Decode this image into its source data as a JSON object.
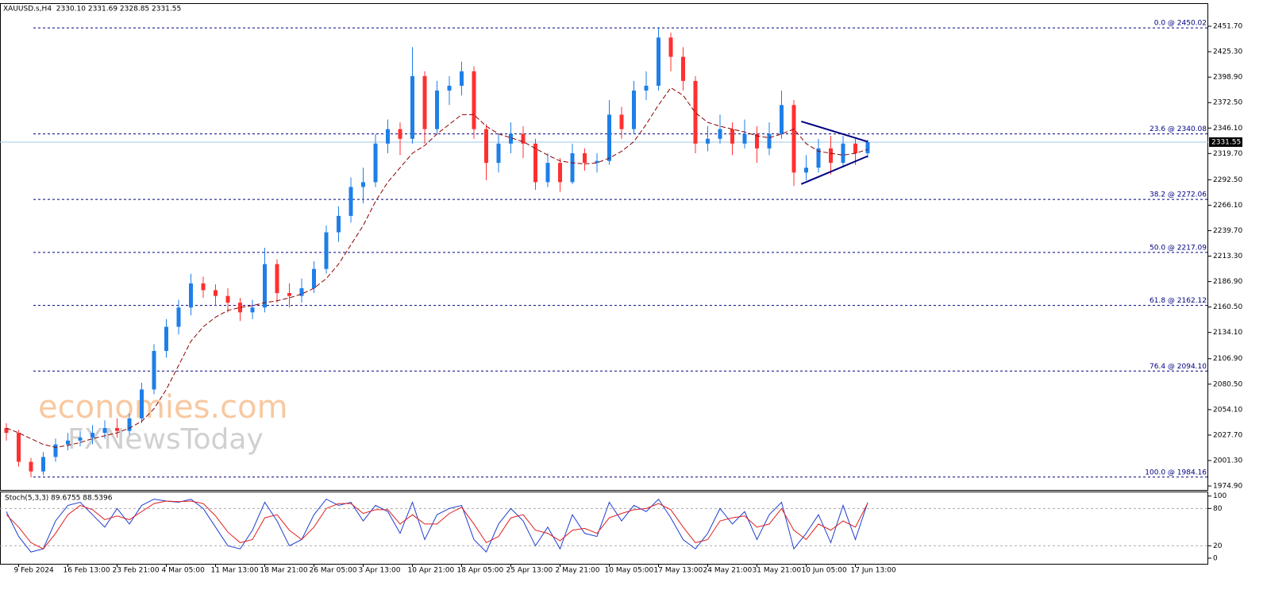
{
  "chart_data": {
    "type": "candlestick",
    "title": "XAUUSD.s,H4  2330.10 2331.69 2328.85 2331.55",
    "categories": [
      null,
      "9 Feb 2024",
      null,
      null,
      null,
      "16 Feb 13:00",
      null,
      null,
      null,
      "23 Feb 21:00",
      null,
      null,
      null,
      "4 Mar 05:00",
      null,
      null,
      null,
      "11 Mar 13:00",
      null,
      null,
      null,
      "18 Mar 21:00",
      null,
      null,
      null,
      "26 Mar 05:00",
      null,
      null,
      null,
      "3 Apr 13:00",
      null,
      null,
      null,
      "10 Apr 21:00",
      null,
      null,
      null,
      "18 Apr 05:00",
      null,
      null,
      null,
      "25 Apr 13:00",
      null,
      null,
      null,
      "2 May 21:00",
      null,
      null,
      null,
      "10 May 05:00",
      null,
      null,
      null,
      "17 May 13:00",
      null,
      null,
      null,
      "24 May 21:00",
      null,
      null,
      null,
      "31 May 21:00",
      null,
      null,
      null,
      "10 Jun 05:00",
      null,
      null,
      null,
      "17 Jun 13:00",
      null
    ],
    "open": [
      2035,
      2030,
      2000,
      1990,
      2005,
      2018,
      2022,
      2025,
      2030,
      2035,
      2032,
      2045,
      2075,
      2115,
      2140,
      2160,
      2185,
      2178,
      2172,
      2165,
      2155,
      2160,
      2205,
      2175,
      2172,
      2180,
      2200,
      2238,
      2255,
      2285,
      2290,
      2330,
      2345,
      2335,
      2400,
      2345,
      2385,
      2390,
      2405,
      2345,
      2310,
      2330,
      2340,
      2330,
      2290,
      2310,
      2290,
      2320,
      2310,
      2312,
      2360,
      2345,
      2385,
      2390,
      2440,
      2420,
      2395,
      2330,
      2335,
      2345,
      2330,
      2340,
      2325,
      2340,
      2370,
      2300,
      2305,
      2325,
      2310,
      2330,
      2320
    ],
    "high": [
      2040,
      2033,
      2004,
      2010,
      2024,
      2030,
      2032,
      2038,
      2043,
      2045,
      2050,
      2082,
      2122,
      2148,
      2168,
      2195,
      2192,
      2184,
      2180,
      2170,
      2168,
      2222,
      2210,
      2185,
      2190,
      2208,
      2245,
      2265,
      2295,
      2305,
      2340,
      2355,
      2352,
      2430,
      2405,
      2395,
      2400,
      2415,
      2410,
      2350,
      2340,
      2352,
      2348,
      2335,
      2320,
      2315,
      2330,
      2325,
      2320,
      2375,
      2368,
      2395,
      2405,
      2450,
      2445,
      2430,
      2400,
      2348,
      2360,
      2352,
      2355,
      2348,
      2352,
      2385,
      2375,
      2318,
      2335,
      2338,
      2338,
      2335,
      2334
    ],
    "low": [
      2022,
      1995,
      1984,
      1986,
      2000,
      2012,
      2016,
      2018,
      2024,
      2025,
      2028,
      2040,
      2070,
      2108,
      2132,
      2152,
      2170,
      2162,
      2155,
      2146,
      2148,
      2155,
      2165,
      2160,
      2165,
      2175,
      2195,
      2228,
      2248,
      2268,
      2285,
      2320,
      2318,
      2330,
      2330,
      2340,
      2370,
      2380,
      2335,
      2292,
      2300,
      2320,
      2315,
      2282,
      2285,
      2280,
      2288,
      2302,
      2300,
      2308,
      2335,
      2340,
      2375,
      2385,
      2405,
      2385,
      2320,
      2322,
      2330,
      2318,
      2325,
      2310,
      2318,
      2335,
      2286,
      2292,
      2300,
      2298,
      2305,
      2308,
      2315
    ],
    "close": [
      2030,
      2000,
      1990,
      2005,
      2018,
      2022,
      2025,
      2030,
      2035,
      2032,
      2045,
      2075,
      2115,
      2140,
      2160,
      2185,
      2178,
      2172,
      2165,
      2155,
      2160,
      2205,
      2175,
      2172,
      2180,
      2200,
      2238,
      2255,
      2285,
      2290,
      2330,
      2345,
      2335,
      2400,
      2345,
      2385,
      2390,
      2405,
      2345,
      2310,
      2330,
      2340,
      2330,
      2290,
      2310,
      2290,
      2320,
      2310,
      2312,
      2360,
      2345,
      2385,
      2390,
      2440,
      2420,
      2395,
      2330,
      2335,
      2345,
      2330,
      2340,
      2325,
      2340,
      2370,
      2300,
      2305,
      2325,
      2310,
      2330,
      2320,
      2331.55
    ],
    "colors": {
      "up": "#1e7fe8",
      "down": "#ff3030"
    },
    "ma": {
      "color": "#8b0000",
      "values": [
        2035,
        2030,
        2024,
        2018,
        2015,
        2017,
        2020,
        2024,
        2027,
        2030,
        2035,
        2042,
        2055,
        2075,
        2100,
        2125,
        2140,
        2150,
        2157,
        2160,
        2162,
        2165,
        2167,
        2170,
        2174,
        2180,
        2190,
        2205,
        2225,
        2245,
        2270,
        2290,
        2305,
        2320,
        2328,
        2340,
        2350,
        2360,
        2360,
        2348,
        2340,
        2336,
        2332,
        2325,
        2318,
        2312,
        2310,
        2309,
        2310,
        2315,
        2322,
        2332,
        2350,
        2370,
        2388,
        2380,
        2362,
        2352,
        2348,
        2345,
        2342,
        2338,
        2336,
        2340,
        2345,
        2330,
        2322,
        2320,
        2318,
        2320,
        2324
      ]
    },
    "ylim": [
      1970.8,
      2474.8
    ],
    "yticks": [
      {
        "value": 2451.7,
        "label": "2451.70"
      },
      {
        "value": 2425.3,
        "label": "2425.30"
      },
      {
        "value": 2398.9,
        "label": "2398.90"
      },
      {
        "value": 2372.5,
        "label": "2372.50"
      },
      {
        "value": 2346.1,
        "label": "2346.10"
      },
      {
        "value": 2319.7,
        "label": "2319.70"
      },
      {
        "value": 2292.5,
        "label": "2292.50"
      },
      {
        "value": 2266.1,
        "label": "2266.10"
      },
      {
        "value": 2239.7,
        "label": "2239.70"
      },
      {
        "value": 2213.3,
        "label": "2213.30"
      },
      {
        "value": 2186.9,
        "label": "2186.90"
      },
      {
        "value": 2160.5,
        "label": "2160.50"
      },
      {
        "value": 2134.1,
        "label": "2134.10"
      },
      {
        "value": 2106.9,
        "label": "2106.90"
      },
      {
        "value": 2080.5,
        "label": "2080.50"
      },
      {
        "value": 2054.1,
        "label": "2054.10"
      },
      {
        "value": 2027.7,
        "label": "2027.70"
      },
      {
        "value": 2001.3,
        "label": "2001.30"
      },
      {
        "value": 1974.9,
        "label": "1974.90"
      }
    ],
    "last_price": 2331.55,
    "fib_levels": [
      {
        "value": 2450.02,
        "label": "0.0 @ 2450.02"
      },
      {
        "value": 2340.08,
        "label": "23.6 @ 2340.08"
      },
      {
        "value": 2272.06,
        "label": "38.2 @ 2272.06"
      },
      {
        "value": 2217.09,
        "label": "50.0 @ 2217.09"
      },
      {
        "value": 2162.12,
        "label": "61.8 @ 2162.12"
      },
      {
        "value": 2094.1,
        "label": "76.4 @ 2094.10"
      },
      {
        "value": 1984.16,
        "label": "100.0 @ 1984.16"
      }
    ],
    "trendlines": [
      {
        "color": "#000080",
        "x": [
          64.6,
          70
        ],
        "y": [
          2353,
          2332
        ]
      },
      {
        "color": "#000080",
        "x": [
          64.6,
          70
        ],
        "y": [
          2288,
          2317
        ]
      }
    ],
    "watermark": [
      "economies.com",
      "FXNewsToday"
    ],
    "stoch": {
      "title": "Stoch(5,3,3) 89.6755 88.5396",
      "ylim": [
        -9,
        106
      ],
      "yticks": [
        0,
        20,
        80,
        100
      ],
      "levels": [
        20,
        80
      ],
      "series": [
        {
          "color": "#1f3fd0",
          "values": [
            75,
            35,
            10,
            15,
            60,
            85,
            90,
            70,
            50,
            80,
            55,
            85,
            95,
            92,
            90,
            95,
            80,
            50,
            20,
            15,
            45,
            90,
            60,
            20,
            30,
            70,
            95,
            85,
            90,
            60,
            85,
            75,
            40,
            90,
            30,
            70,
            80,
            85,
            30,
            10,
            55,
            80,
            60,
            20,
            50,
            15,
            70,
            40,
            35,
            90,
            60,
            85,
            75,
            95,
            65,
            30,
            15,
            40,
            80,
            55,
            75,
            30,
            70,
            90,
            15,
            40,
            70,
            25,
            85,
            30,
            89.6755
          ]
        },
        {
          "color": "#e02020",
          "values": [
            70,
            50,
            25,
            15,
            40,
            70,
            85,
            78,
            62,
            68,
            62,
            75,
            88,
            92,
            91,
            92,
            88,
            68,
            42,
            25,
            30,
            65,
            70,
            45,
            30,
            50,
            80,
            88,
            88,
            72,
            78,
            78,
            55,
            70,
            55,
            55,
            72,
            82,
            55,
            25,
            35,
            65,
            70,
            45,
            40,
            28,
            45,
            48,
            40,
            65,
            72,
            78,
            80,
            88,
            78,
            50,
            25,
            30,
            60,
            65,
            68,
            50,
            55,
            80,
            45,
            30,
            55,
            45,
            60,
            50,
            88.5396
          ]
        }
      ]
    }
  }
}
